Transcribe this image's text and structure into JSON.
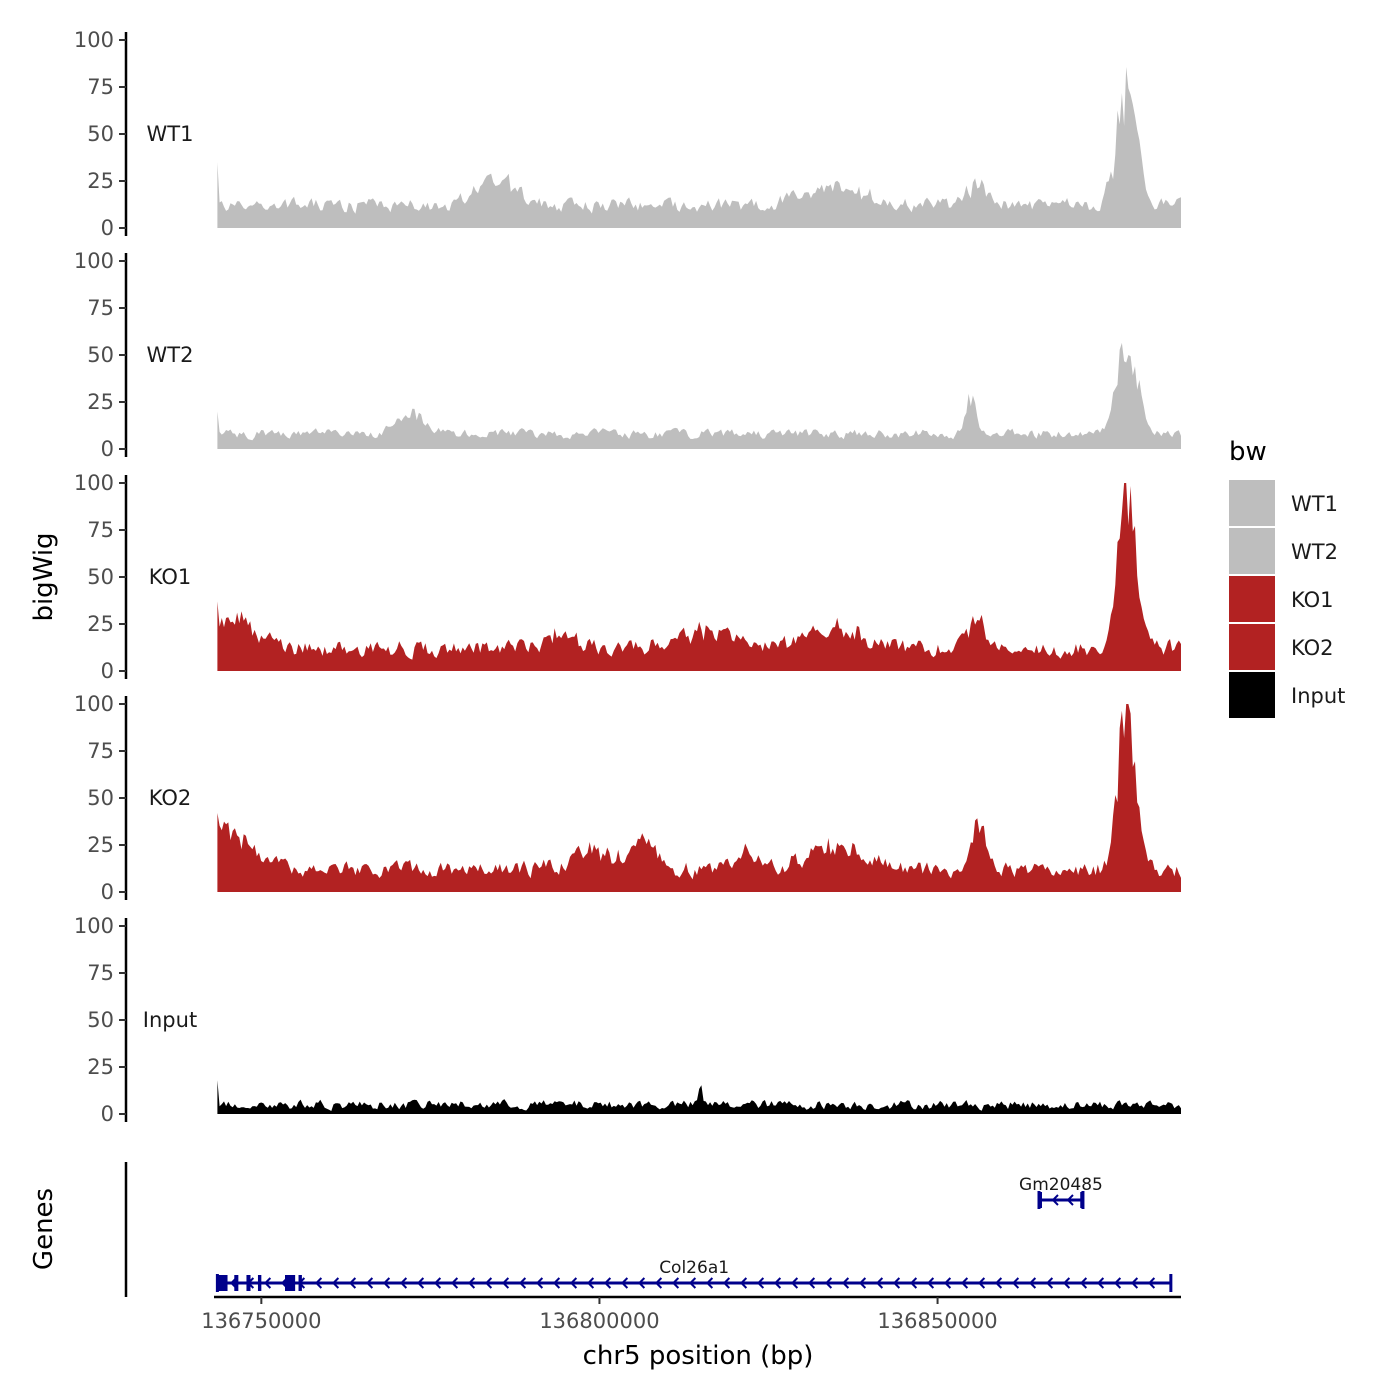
{
  "chart_data": {
    "type": "area",
    "ylabel": "bigWig",
    "xlabel": "chr5 position (bp)",
    "x_range": [
      136743000,
      136886000
    ],
    "x_ticks": [
      136750000,
      136800000,
      136850000
    ],
    "ylim": [
      0,
      100
    ],
    "y_ticks": [
      0,
      25,
      50,
      75,
      100
    ],
    "grid": false,
    "legend": {
      "title": "bw",
      "placement": "right",
      "entries": [
        {
          "label": "WT1",
          "color": "#bebebe"
        },
        {
          "label": "WT2",
          "color": "#bebebe"
        },
        {
          "label": "KO1",
          "color": "#b22222"
        },
        {
          "label": "KO2",
          "color": "#b22222"
        },
        {
          "label": "Input",
          "color": "#000000"
        }
      ]
    },
    "series": [
      {
        "name": "WT1",
        "color": "#bebebe",
        "baseline": 12,
        "noise": 6,
        "start_value": 35,
        "peaks": [
          [
            136785000,
            12,
            3000
          ],
          [
            136835000,
            8,
            5000
          ],
          [
            136856000,
            12,
            1500
          ],
          [
            136878000,
            60,
            1500
          ]
        ]
      },
      {
        "name": "WT2",
        "color": "#bebebe",
        "baseline": 8,
        "noise": 4,
        "start_value": 20,
        "peaks": [
          [
            136772000,
            10,
            2000
          ],
          [
            136855000,
            20,
            800
          ],
          [
            136878000,
            50,
            1500
          ]
        ]
      },
      {
        "name": "KO1",
        "color": "#b22222",
        "baseline": 12,
        "noise": 7,
        "start_value": 37,
        "peaks": [
          [
            136746000,
            15,
            3000
          ],
          [
            136795000,
            10,
            2000
          ],
          [
            136815000,
            10,
            4000
          ],
          [
            136835000,
            10,
            4000
          ],
          [
            136856000,
            15,
            1200
          ],
          [
            136878000,
            85,
            1300
          ]
        ]
      },
      {
        "name": "KO2",
        "color": "#b22222",
        "baseline": 12,
        "noise": 7,
        "start_value": 42,
        "peaks": [
          [
            136746000,
            20,
            3000
          ],
          [
            136800000,
            10,
            4000
          ],
          [
            136807000,
            15,
            1500
          ],
          [
            136822000,
            10,
            1200
          ],
          [
            136835000,
            12,
            4000
          ],
          [
            136856000,
            25,
            1000
          ],
          [
            136878000,
            85,
            1300
          ]
        ]
      },
      {
        "name": "Input",
        "color": "#000000",
        "baseline": 5,
        "noise": 4,
        "start_value": 18,
        "peaks": [
          [
            136815000,
            12,
            200
          ]
        ]
      }
    ],
    "signal_range": [
      136743500,
      136886000
    ],
    "genes": {
      "title": "Genes",
      "color": "#00008b",
      "items": [
        {
          "name": "Col26a1",
          "strand": "-",
          "start": 136743500,
          "end": 136884500,
          "exons": [
            [
              136743500,
              136745000
            ],
            [
              136746000,
              136746600
            ],
            [
              136747800,
              136748400
            ],
            [
              136749500,
              136750000
            ],
            [
              136753500,
              136755000
            ],
            [
              136755500,
              136756000
            ]
          ]
        },
        {
          "name": "Gm20485",
          "strand": "-",
          "start": 136865000,
          "end": 136871500,
          "exons": [
            [
              136865000,
              136865400
            ],
            [
              136871100,
              136871500
            ]
          ]
        }
      ]
    }
  }
}
